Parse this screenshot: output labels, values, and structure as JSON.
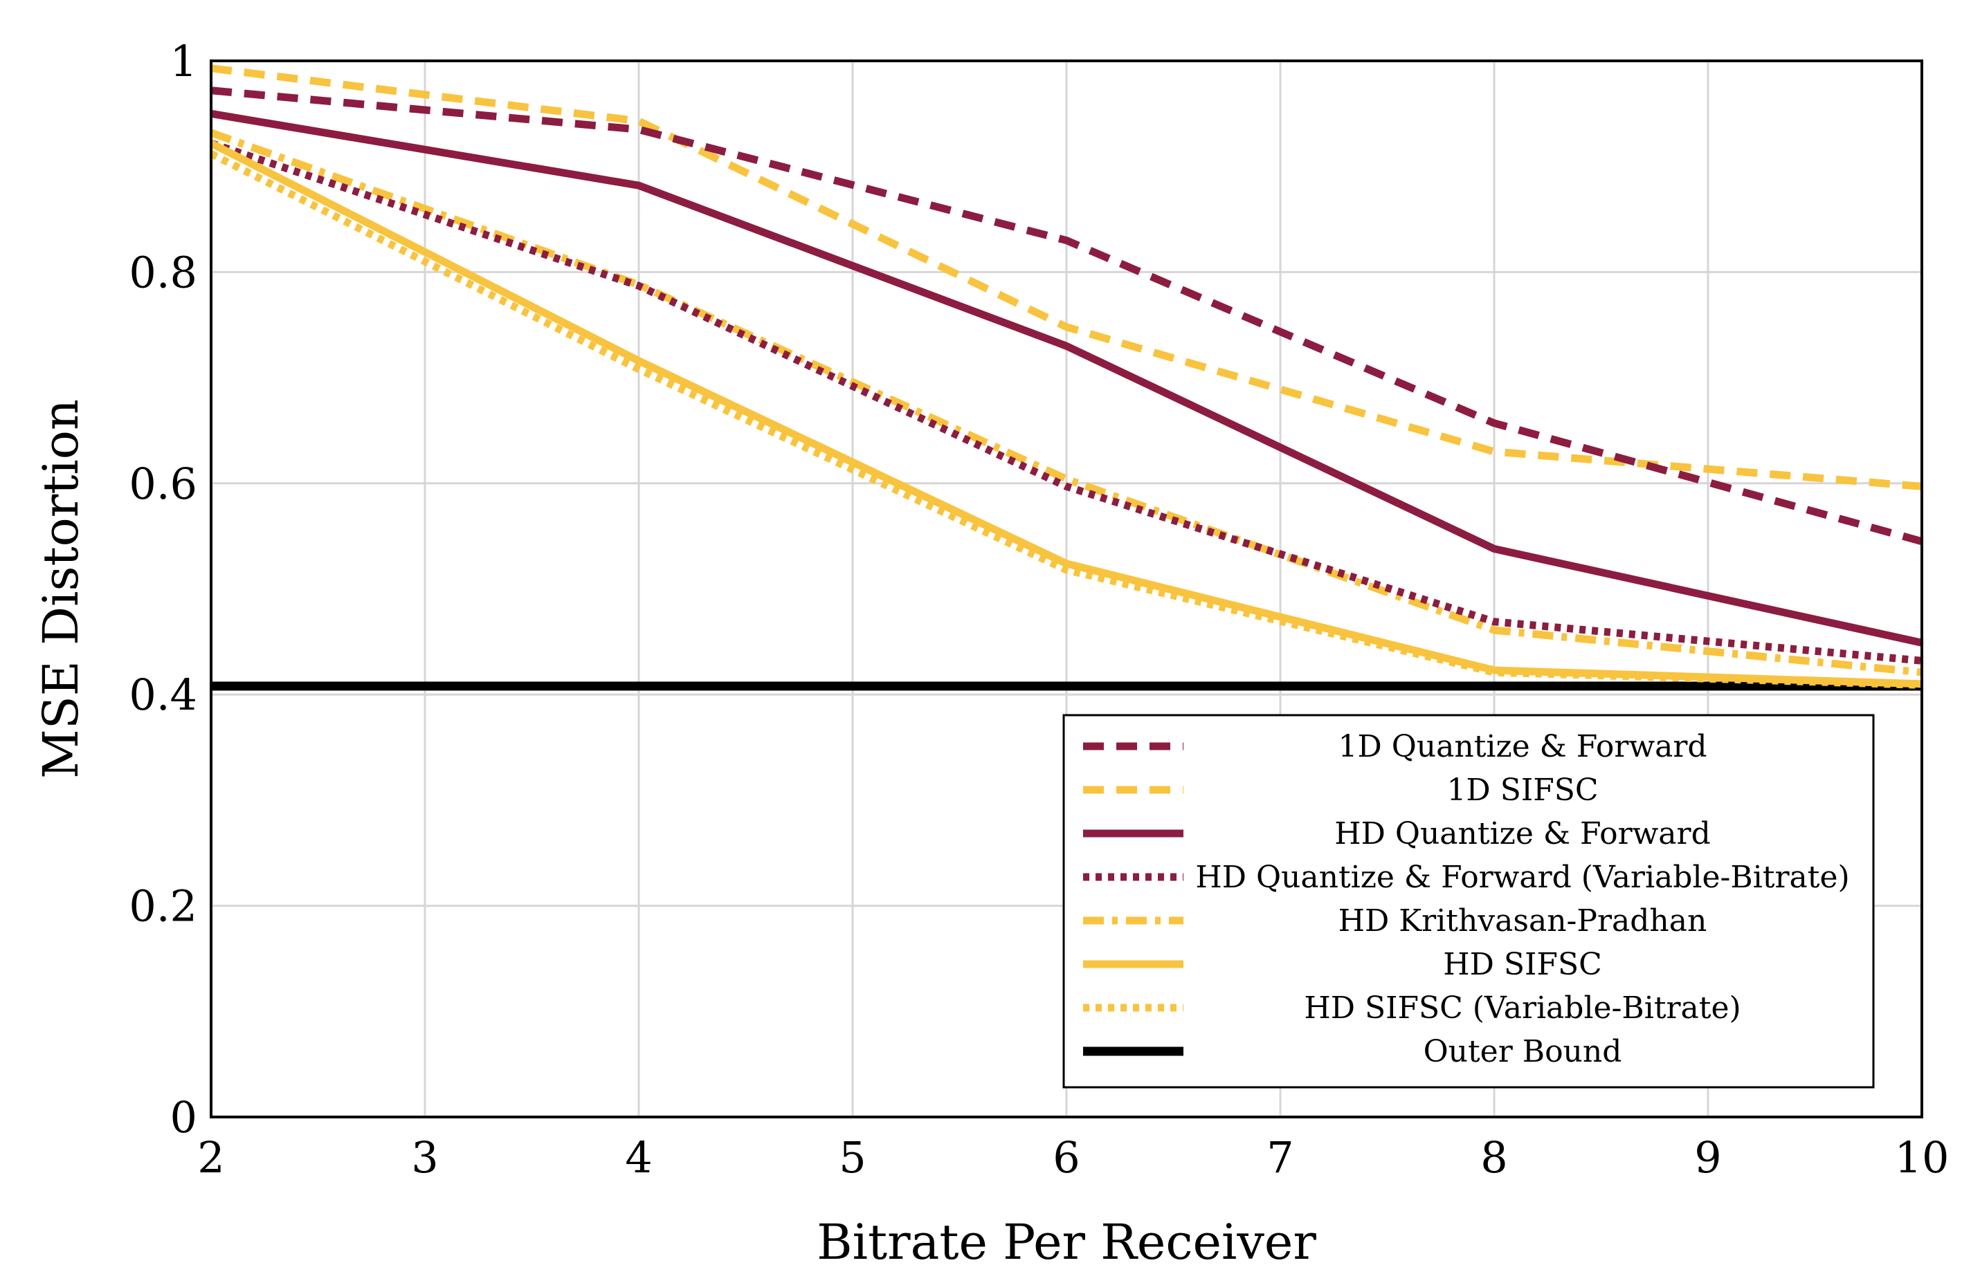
{
  "chart_data": {
    "type": "line",
    "xlabel": "Bitrate Per Receiver",
    "ylabel": "MSE Distortion",
    "xlim": [
      2,
      10
    ],
    "ylim": [
      0,
      1
    ],
    "x_ticks": [
      2,
      3,
      4,
      5,
      6,
      7,
      8,
      9,
      10
    ],
    "x_tick_labels": [
      "2",
      "3",
      "4",
      "5",
      "6",
      "7",
      "8",
      "9",
      "10"
    ],
    "y_ticks": [
      0,
      0.2,
      0.4,
      0.6,
      0.8,
      1
    ],
    "y_tick_labels": [
      "0",
      "0.2",
      "0.4",
      "0.6",
      "0.8",
      "1"
    ],
    "grid": true,
    "legend_position": "bottom-right",
    "colors": {
      "maroon": "#8c1d40",
      "gold": "#f8c33e",
      "black": "#000000",
      "grid": "#d6d6d6"
    },
    "series": [
      {
        "name": "1D Quantize & Forward",
        "color": "#8c1d40",
        "style": "dashed",
        "x": [
          2,
          4,
          6,
          8,
          10
        ],
        "values": [
          0.972,
          0.935,
          0.83,
          0.657,
          0.545
        ]
      },
      {
        "name": "1D SIFSC",
        "color": "#f8c33e",
        "style": "dashed",
        "x": [
          2,
          4,
          6,
          8,
          10
        ],
        "values": [
          0.993,
          0.943,
          0.748,
          0.63,
          0.597
        ]
      },
      {
        "name": "HD Quantize & Forward",
        "color": "#8c1d40",
        "style": "solid",
        "x": [
          2,
          4,
          6,
          8,
          10
        ],
        "values": [
          0.95,
          0.882,
          0.73,
          0.538,
          0.449
        ]
      },
      {
        "name": "HD Quantize & Forward (Variable-Bitrate)",
        "color": "#8c1d40",
        "style": "dotted",
        "x": [
          2,
          4,
          6,
          8,
          10
        ],
        "values": [
          0.922,
          0.787,
          0.597,
          0.469,
          0.432
        ]
      },
      {
        "name": "HD Krithvasan-Pradhan",
        "color": "#f8c33e",
        "style": "dashdot",
        "x": [
          2,
          4,
          6,
          8,
          10
        ],
        "values": [
          0.932,
          0.788,
          0.604,
          0.461,
          0.421
        ]
      },
      {
        "name": "HD SIFSC",
        "color": "#f8c33e",
        "style": "solid",
        "x": [
          2,
          4,
          6,
          8,
          10
        ],
        "values": [
          0.922,
          0.716,
          0.524,
          0.423,
          0.41
        ]
      },
      {
        "name": "HD SIFSC (Variable-Bitrate)",
        "color": "#f8c33e",
        "style": "dotted",
        "x": [
          2,
          4,
          6,
          8,
          10
        ],
        "values": [
          0.912,
          0.708,
          0.518,
          0.421,
          0.409
        ]
      },
      {
        "name": "Outer Bound",
        "color": "#000000",
        "style": "solid-thick",
        "x": [
          2,
          10
        ],
        "values": [
          0.408,
          0.408
        ]
      }
    ]
  }
}
